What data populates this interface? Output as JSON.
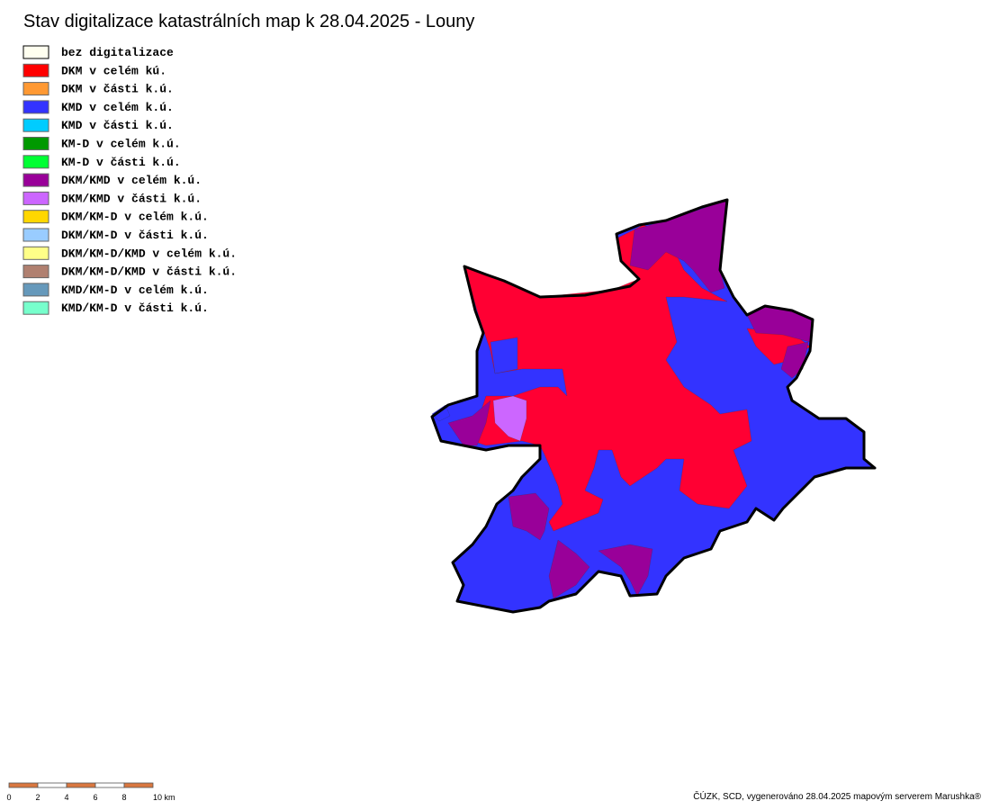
{
  "title": "Stav digitalizace katastrálních map k 28.04.2025 - Louny",
  "legend": [
    {
      "label": "bez digitalizace",
      "color": "#fffff0"
    },
    {
      "label": "DKM v celém kú.",
      "color": "#ff0000"
    },
    {
      "label": "DKM v části k.ú.",
      "color": "#ff9933"
    },
    {
      "label": "KMD v celém k.ú.",
      "color": "#3333ff"
    },
    {
      "label": "KMD v části k.ú.",
      "color": "#00ccff"
    },
    {
      "label": "KM-D v celém k.ú.",
      "color": "#009900"
    },
    {
      "label": "KM-D v části k.ú.",
      "color": "#00ff33"
    },
    {
      "label": "DKM/KMD v celém k.ú.",
      "color": "#990099"
    },
    {
      "label": "DKM/KMD v části k.ú.",
      "color": "#cc66ff"
    },
    {
      "label": "DKM/KM-D v celém k.ú.",
      "color": "#ffd700"
    },
    {
      "label": "DKM/KM-D v části k.ú.",
      "color": "#99ccff"
    },
    {
      "label": "DKM/KM-D/KMD v celém k.ú.",
      "color": "#ffff88"
    },
    {
      "label": "DKM/KM-D/KMD v části k.ú.",
      "color": "#b08070"
    },
    {
      "label": "KMD/KM-D v celém k.ú.",
      "color": "#6699bb"
    },
    {
      "label": "KMD/KM-D v části k.ú.",
      "color": "#77ffcc"
    }
  ],
  "scale_bar": {
    "labels": [
      "0",
      "2",
      "4",
      "6",
      "8",
      "10 km"
    ]
  },
  "credit": "ČÚZK, SCD, vygenerováno 28.04.2025 mapovým serverem Marushka®"
}
